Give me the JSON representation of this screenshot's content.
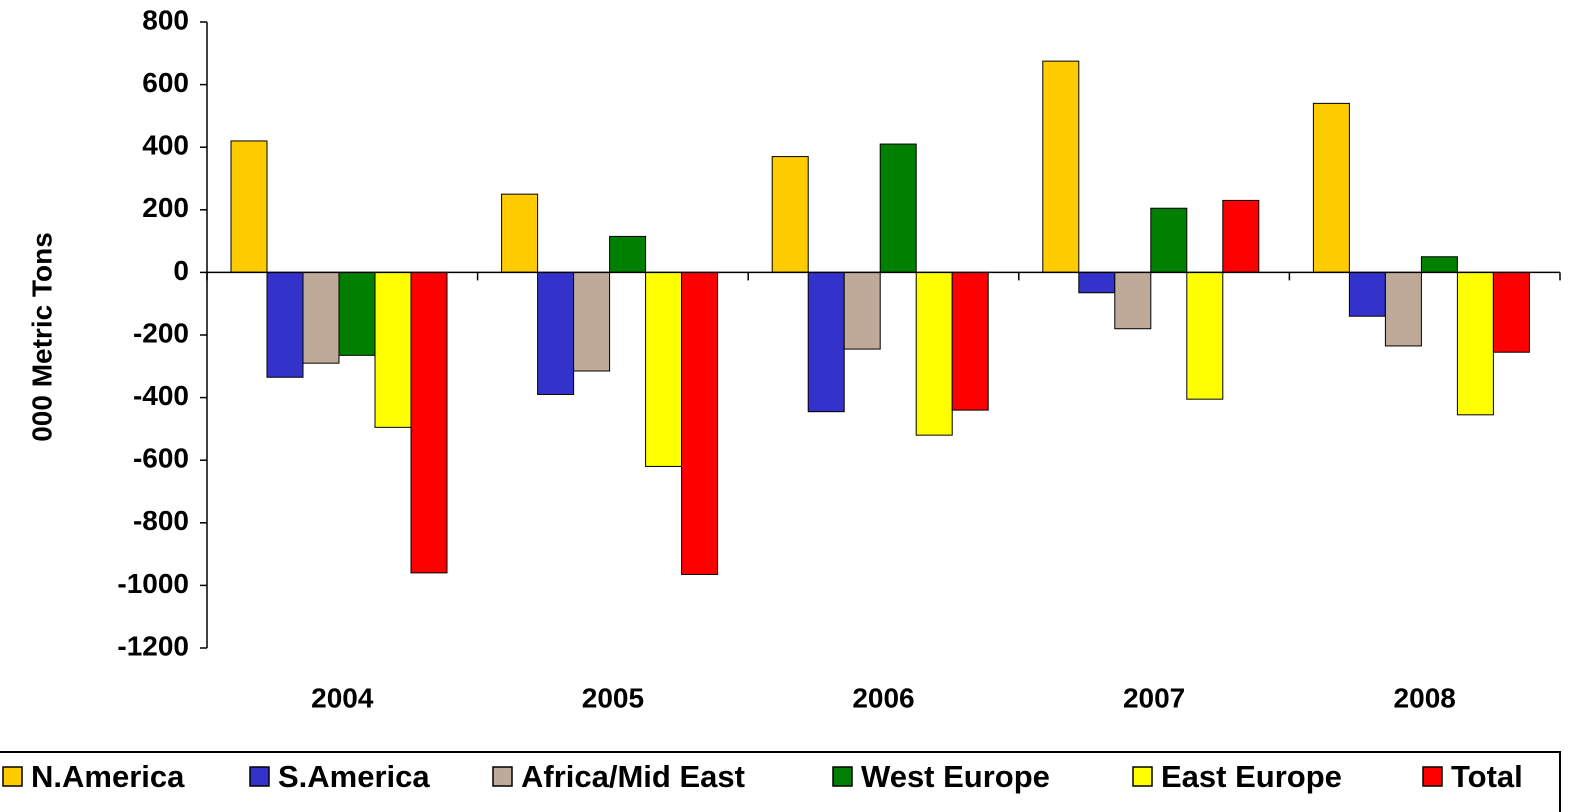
{
  "chart_data": {
    "type": "bar",
    "title": "",
    "xlabel": "",
    "ylabel": "000 Metric Tons",
    "ylim": [
      -1200,
      800
    ],
    "yticks": [
      800,
      600,
      400,
      200,
      0,
      -200,
      -400,
      -600,
      -800,
      -1000,
      -1200
    ],
    "ytick_labels": [
      "800",
      "600",
      "400",
      "200",
      "0",
      "-200",
      "-400",
      "-600",
      "-800",
      "-1000",
      "-1200"
    ],
    "categories": [
      "2004",
      "2005",
      "2006",
      "2007",
      "2008"
    ],
    "grid": false,
    "legend_position": "bottom",
    "series": [
      {
        "name": "N.America",
        "color": "#FFCC00",
        "values": [
          420,
          250,
          370,
          675,
          540
        ]
      },
      {
        "name": "S.America",
        "color": "#3333CC",
        "values": [
          -335,
          -390,
          -445,
          -65,
          -140
        ]
      },
      {
        "name": "Africa/Mid East",
        "color": "#BFAA99",
        "values": [
          -290,
          -315,
          -245,
          -180,
          -235
        ]
      },
      {
        "name": "West Europe",
        "color": "#008000",
        "values": [
          -265,
          115,
          410,
          205,
          50
        ]
      },
      {
        "name": "East Europe",
        "color": "#FFFF00",
        "values": [
          -495,
          -620,
          -520,
          -405,
          -455
        ]
      },
      {
        "name": "Total",
        "color": "#FF0000",
        "values": [
          -960,
          -965,
          -440,
          230,
          -255
        ]
      }
    ]
  }
}
